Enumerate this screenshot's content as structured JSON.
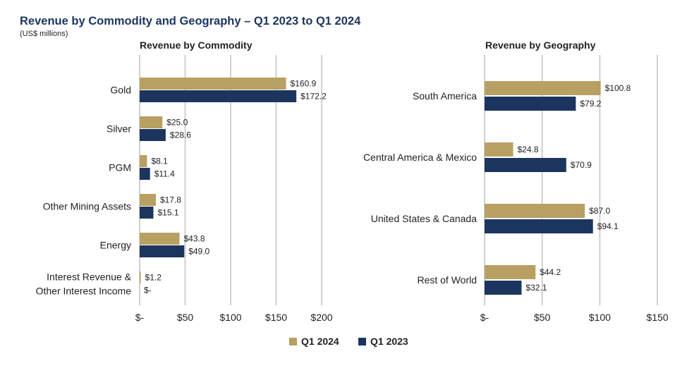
{
  "title": "Revenue by Commodity and Geography – Q1 2023 to Q1 2024",
  "subtitle": "(US$ millions)",
  "colors": {
    "q1_2024": "#b8a062",
    "q1_2023": "#1c355e",
    "grid": "#cfcfcf",
    "text": "#222222"
  },
  "legend": [
    {
      "label": "Q1 2024",
      "color": "#b8a062"
    },
    {
      "label": "Q1 2023",
      "color": "#1c355e"
    }
  ],
  "chart_data": [
    {
      "type": "bar",
      "orientation": "horizontal",
      "title": "Revenue by Commodity",
      "categories": [
        "Gold",
        "Silver",
        "PGM",
        "Other Mining Assets",
        "Energy",
        "Interest Revenue &\nOther Interest Income"
      ],
      "series": [
        {
          "name": "Q1 2024",
          "values": [
            160.9,
            25.0,
            8.1,
            17.8,
            43.8,
            1.2
          ],
          "labels": [
            "$160.9",
            "$25.0",
            "$8.1",
            "$17.8",
            "$43.8",
            "$1.2"
          ]
        },
        {
          "name": "Q1 2023",
          "values": [
            172.2,
            28.6,
            11.4,
            15.1,
            49.0,
            0
          ],
          "labels": [
            "$172.2",
            "$28.6",
            "$11.4",
            "$15.1",
            "$49.0",
            "$-"
          ]
        }
      ],
      "xlim": [
        0,
        200
      ],
      "ticks": [
        0,
        50,
        100,
        150,
        200
      ],
      "tick_labels": [
        "$-",
        "$50",
        "$100",
        "$150",
        "$200"
      ],
      "grid": true
    },
    {
      "type": "bar",
      "orientation": "horizontal",
      "title": "Revenue by Geography",
      "categories": [
        "South America",
        "Central America & Mexico",
        "United States & Canada",
        "Rest of World"
      ],
      "series": [
        {
          "name": "Q1 2024",
          "values": [
            100.8,
            24.8,
            87.0,
            44.2
          ],
          "labels": [
            "$100.8",
            "$24.8",
            "$87.0",
            "$44.2"
          ]
        },
        {
          "name": "Q1 2023",
          "values": [
            79.2,
            70.9,
            94.1,
            32.1
          ],
          "labels": [
            "$79.2",
            "$70.9",
            "$94.1",
            "$32.1"
          ]
        }
      ],
      "xlim": [
        0,
        150
      ],
      "ticks": [
        0,
        50,
        100,
        150
      ],
      "tick_labels": [
        "$-",
        "$50",
        "$100",
        "$150"
      ],
      "grid": true
    }
  ]
}
